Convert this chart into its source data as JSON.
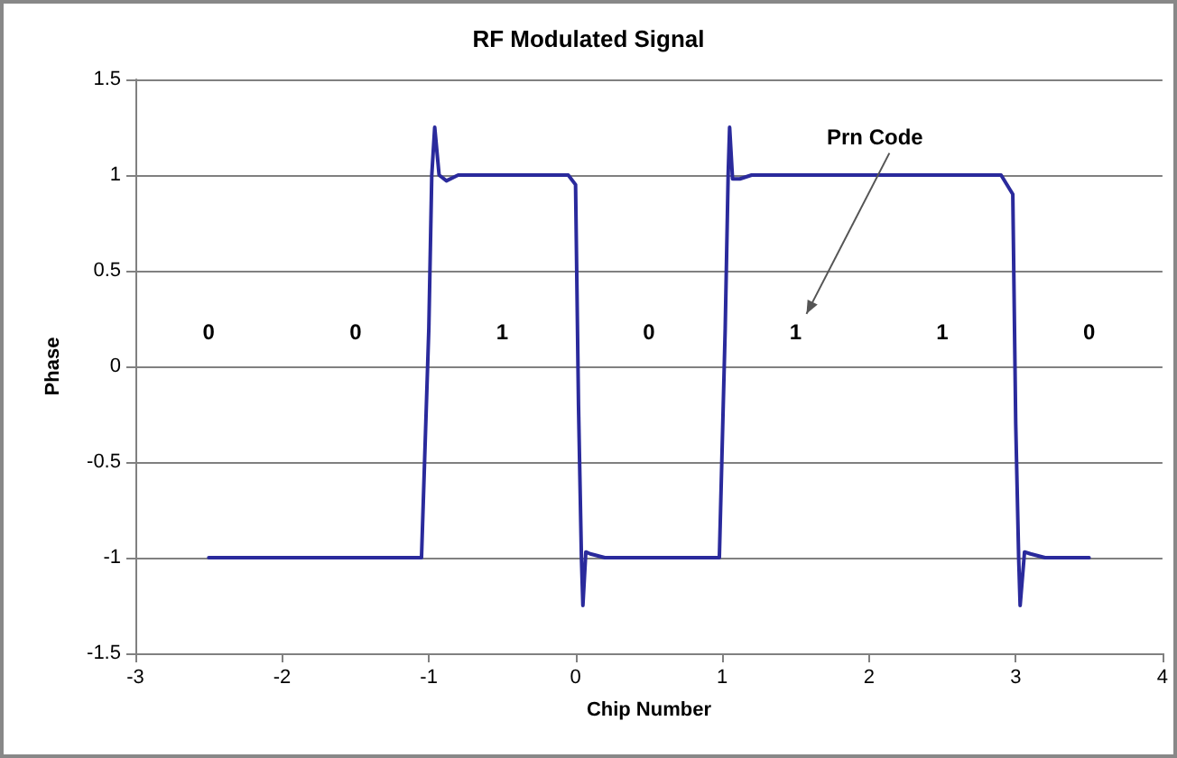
{
  "chart_data": {
    "type": "line",
    "title": "RF Modulated Signal",
    "xlabel": "Chip Number",
    "ylabel": "Phase",
    "series": [
      {
        "color": "#2a2a9c",
        "x": [
          -2.5,
          -2.2,
          -1.9,
          -1.6,
          -1.3,
          -1.05,
          -1.0,
          -0.98,
          -0.96,
          -0.93,
          -0.88,
          -0.8,
          -0.6,
          -0.3,
          -0.05,
          0.0,
          0.02,
          0.04,
          0.05,
          0.07,
          0.1,
          0.2,
          0.5,
          0.8,
          0.98,
          1.02,
          1.04,
          1.05,
          1.07,
          1.12,
          1.2,
          1.5,
          2.0,
          2.5,
          2.9,
          2.98,
          3.0,
          3.02,
          3.03,
          3.06,
          3.1,
          3.2,
          3.35,
          3.5
        ],
        "values": [
          -1,
          -1,
          -1,
          -1,
          -1,
          -1,
          0.2,
          1.0,
          1.25,
          1.0,
          0.97,
          1.0,
          1.0,
          1.0,
          1.0,
          0.95,
          -0.2,
          -1.0,
          -1.25,
          -0.97,
          -0.98,
          -1.0,
          -1,
          -1,
          -1,
          0.2,
          1.0,
          1.25,
          0.98,
          0.98,
          1.0,
          1,
          1,
          1,
          1,
          0.9,
          -0.3,
          -1.0,
          -1.25,
          -0.97,
          -0.98,
          -1.0,
          -1,
          -1
        ]
      }
    ],
    "xlim": [
      -3,
      4
    ],
    "xticks": [
      -3,
      -2,
      -1,
      0,
      1,
      2,
      3,
      4
    ],
    "ylim": [
      -1.5,
      1.5
    ],
    "yticks": [
      -1.5,
      -1,
      -0.5,
      0,
      0.5,
      1,
      1.5
    ],
    "grid": "y",
    "marker": "none",
    "line_style": "solid",
    "annotations": [
      "0",
      "0",
      "1",
      "0",
      "1",
      "1",
      "0",
      "Prn Code"
    ]
  }
}
